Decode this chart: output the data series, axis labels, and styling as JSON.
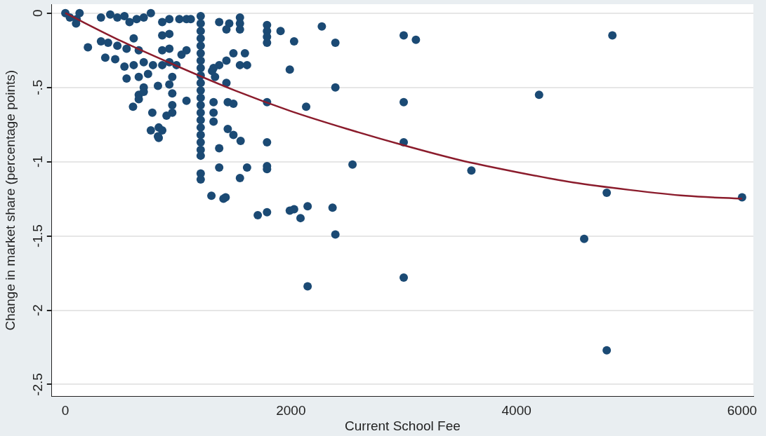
{
  "chart_data": {
    "type": "scatter",
    "xlabel": "Current School Fee",
    "ylabel": "Change in market share (percentage points)",
    "xlim": [
      -120,
      6100
    ],
    "xticks": [
      0,
      2000,
      4000,
      6000
    ],
    "ylim": [
      -2.58,
      0.06
    ],
    "yticks": [
      0,
      {
        "value": -0.5,
        "label": "-.5"
      },
      -1,
      {
        "value": -1.5,
        "label": "-1.5"
      },
      -2,
      {
        "value": -2.5,
        "label": "-2.5"
      }
    ],
    "grid": "y",
    "legend": false,
    "series": [
      {
        "color": "#1b4a74",
        "marker": "circle",
        "x": [
          0,
          40,
          100,
          95,
          126,
          200,
          316,
          398,
          461,
          524,
          569,
          632,
          695,
          758,
          316,
          379,
          461,
          543,
          606,
          651,
          354,
          442,
          524,
          606,
          695,
          777,
          543,
          651,
          733,
          600,
          651,
          695,
          821,
          859,
          859,
          859,
          859,
          922,
          1011,
          1074,
          1112,
          922,
          922,
          922,
          1074,
          1030,
          985,
          948,
          948,
          948,
          922,
          948,
          771,
          897,
          695,
          651,
          758,
          828,
          828,
          859,
          821,
          1074,
          1200,
          1200,
          1200,
          1200,
          1200,
          1200,
          1200,
          1200,
          1200,
          1200,
          1200,
          1200,
          1200,
          1200,
          1200,
          1200,
          1200,
          1200,
          1200,
          1200,
          1200,
          1200,
          1364,
          1453,
          1428,
          1548,
          1548,
          1548,
          1364,
          1301,
          1327,
          1314,
          1314,
          1314,
          1314,
          1490,
          1592,
          1428,
          1548,
          1611,
          1428,
          1440,
          1490,
          1440,
          1490,
          1554,
          1364,
          1364,
          1611,
          1548,
          1421,
          1295,
          1402,
          1788,
          1788,
          1788,
          1788,
          1788,
          1788,
          1788,
          1788,
          1706,
          1788,
          1908,
          2028,
          1990,
          2274,
          2394,
          2394,
          2135,
          1990,
          2028,
          2085,
          2148,
          2369,
          2394,
          2148,
          2546,
          3000,
          3108,
          3000,
          3000,
          3000,
          3600,
          4200,
          4850,
          4800,
          4600,
          4800,
          6000
        ],
        "values": [
          0,
          -0.03,
          -0.04,
          -0.07,
          0,
          -0.23,
          -0.03,
          -0.01,
          -0.03,
          -0.02,
          -0.06,
          -0.04,
          -0.03,
          0,
          -0.19,
          -0.2,
          -0.22,
          -0.24,
          -0.17,
          -0.25,
          -0.3,
          -0.31,
          -0.36,
          -0.35,
          -0.33,
          -0.35,
          -0.44,
          -0.43,
          -0.41,
          -0.63,
          -0.55,
          -0.5,
          -0.49,
          -0.06,
          -0.15,
          -0.25,
          -0.35,
          -0.04,
          -0.04,
          -0.04,
          -0.04,
          -0.14,
          -0.24,
          -0.33,
          -0.25,
          -0.28,
          -0.35,
          -0.43,
          -0.54,
          -0.62,
          -0.48,
          -0.67,
          -0.67,
          -0.69,
          -0.53,
          -0.58,
          -0.79,
          -0.77,
          -0.84,
          -0.79,
          -0.83,
          -0.59,
          -0.02,
          -0.07,
          -0.12,
          -0.17,
          -0.22,
          -0.27,
          -0.32,
          -0.37,
          -0.42,
          -0.47,
          -0.52,
          -0.57,
          -0.62,
          -0.67,
          -0.72,
          -0.77,
          -0.82,
          -0.87,
          -0.92,
          -0.96,
          -1.08,
          -1.12,
          -0.06,
          -0.07,
          -0.11,
          -0.03,
          -0.07,
          -0.11,
          -0.35,
          -0.39,
          -0.43,
          -0.37,
          -0.6,
          -0.67,
          -0.73,
          -0.27,
          -0.27,
          -0.32,
          -0.35,
          -0.35,
          -0.47,
          -0.6,
          -0.61,
          -0.78,
          -0.82,
          -0.86,
          -0.91,
          -1.04,
          -1.04,
          -1.11,
          -1.24,
          -1.23,
          -1.25,
          -0.08,
          -0.12,
          -0.16,
          -0.2,
          -0.6,
          -0.87,
          -1.03,
          -1.34,
          -1.36,
          -1.05,
          -0.12,
          -0.19,
          -0.38,
          -0.09,
          -0.2,
          -0.5,
          -0.63,
          -1.33,
          -1.32,
          -1.38,
          -1.3,
          -1.31,
          -1.49,
          -1.84,
          -1.02,
          -0.15,
          -0.18,
          -0.6,
          -0.87,
          -1.78,
          -1.06,
          -0.55,
          -0.15,
          -1.21,
          -1.52,
          -2.27,
          -1.24
        ]
      },
      {
        "type": "line",
        "color": "#8b1c2c",
        "x": [
          0,
          500,
          1000,
          1500,
          2000,
          2500,
          3000,
          3500,
          4000,
          4500,
          5000,
          5500,
          6000
        ],
        "values": [
          0,
          -0.19,
          -0.36,
          -0.52,
          -0.66,
          -0.78,
          -0.89,
          -0.99,
          -1.07,
          -1.14,
          -1.19,
          -1.23,
          -1.25
        ]
      }
    ]
  }
}
